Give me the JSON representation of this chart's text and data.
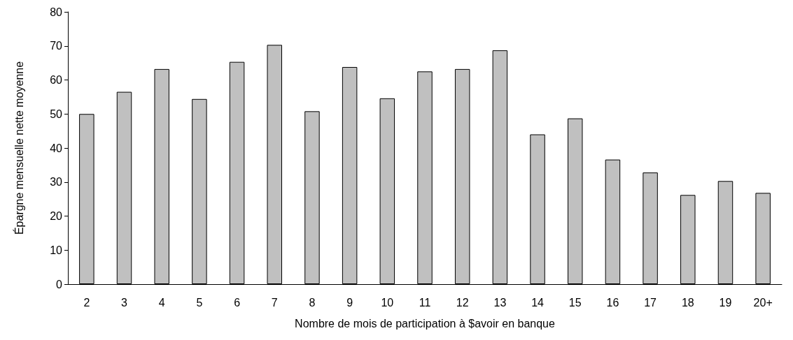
{
  "chart_data": {
    "type": "bar",
    "xlabel": "Nombre de mois de participation à $avoir en banque",
    "ylabel": "Épargne mensuelle nette moyenne",
    "categories": [
      "2",
      "3",
      "4",
      "5",
      "6",
      "7",
      "8",
      "9",
      "10",
      "11",
      "12",
      "13",
      "14",
      "15",
      "16",
      "17",
      "18",
      "19",
      "20+"
    ],
    "values": [
      50,
      56.5,
      63.2,
      54.4,
      65.3,
      70.3,
      50.8,
      63.8,
      54.6,
      62.5,
      63.2,
      68.7,
      44,
      48.7,
      36.6,
      32.8,
      26.2,
      30.3,
      26.8
    ],
    "color": "#c0c0c0",
    "ylim": [
      0,
      80
    ],
    "yticks": [
      0,
      10,
      20,
      30,
      40,
      50,
      60,
      70,
      80
    ],
    "grid": false
  }
}
